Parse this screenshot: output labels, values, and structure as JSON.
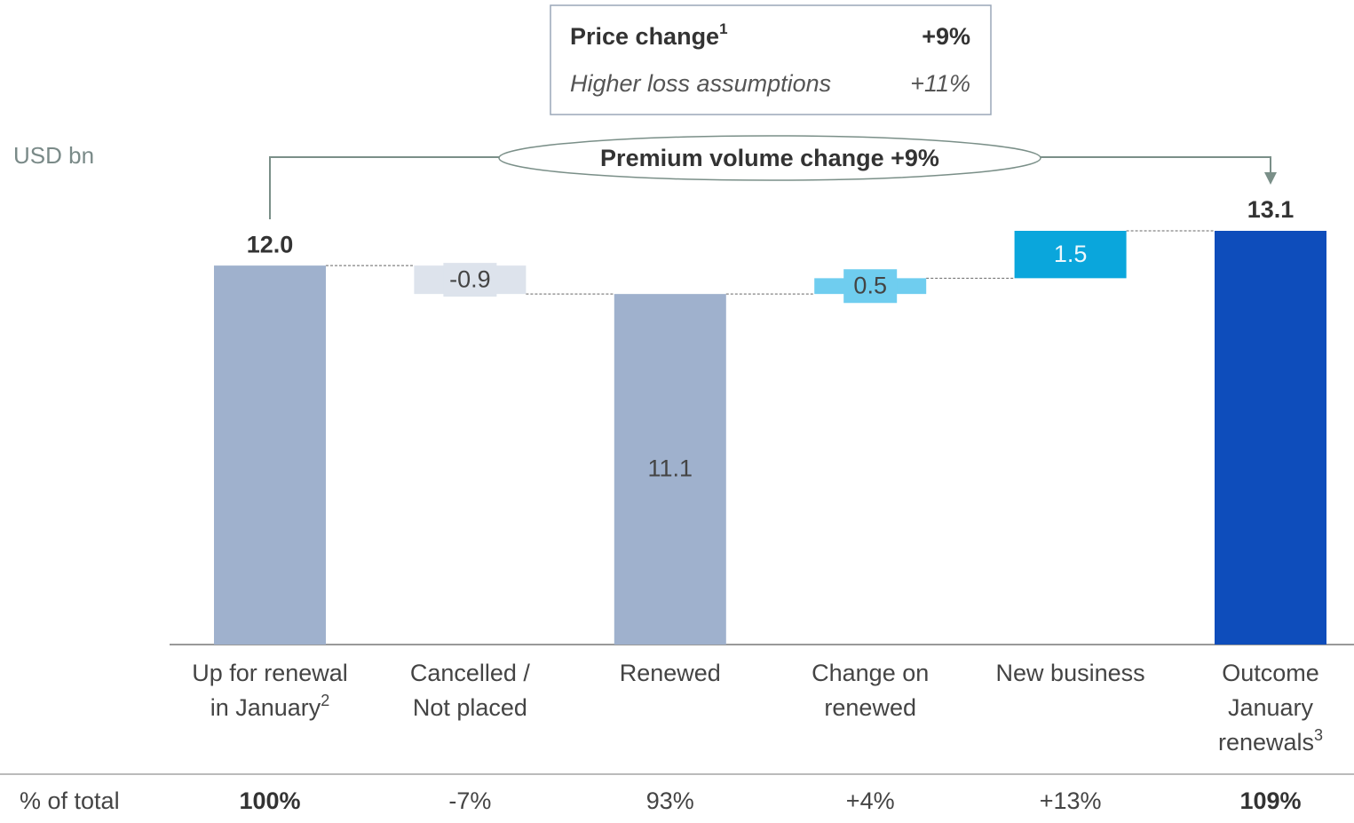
{
  "chart_data": {
    "type": "waterfall",
    "axis_label": "USD bn",
    "categories": [
      [
        "Up for renewal",
        "in January"
      ],
      [
        "Cancelled /",
        "Not placed"
      ],
      [
        "Renewed"
      ],
      [
        "Change on",
        "renewed"
      ],
      [
        "New business"
      ],
      [
        "Outcome",
        "January",
        "renewals"
      ]
    ],
    "category_notes": [
      "2",
      null,
      null,
      null,
      null,
      "3"
    ],
    "values": [
      12.0,
      -0.9,
      11.1,
      0.5,
      1.5,
      13.1
    ],
    "value_labels": [
      "12.0",
      "-0.9",
      "11.1",
      "0.5",
      "1.5",
      "13.1"
    ],
    "measure": [
      "total",
      "relative",
      "total",
      "relative",
      "relative",
      "total"
    ],
    "label_position": [
      "above",
      "center",
      "center",
      "center",
      "center",
      "above"
    ],
    "colors": [
      "#9fb1cd",
      "#dde3ec",
      "#9fb1cd",
      "#6fcdef",
      "#0aa6dc",
      "#0e4dbb"
    ],
    "bracket_label": "Premium volume change +9%",
    "info_box": {
      "rows": [
        {
          "label": "Price change",
          "note": "1",
          "value": "+9%"
        },
        {
          "label": "Higher loss assumptions",
          "value": "+11%"
        }
      ]
    },
    "share_row": {
      "label": "% of total",
      "cells": [
        "100%",
        "-7%",
        "93%",
        "+4%",
        "+13%",
        "109%"
      ]
    }
  }
}
